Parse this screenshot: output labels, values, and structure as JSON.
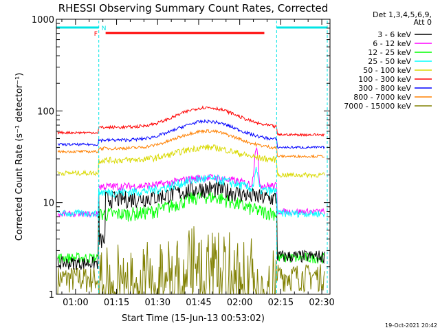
{
  "chart_data": {
    "type": "line",
    "title": "RHESSI Observing Summary Count Rates, Corrected",
    "xlabel": "Start Time (15-Jun-13 00:53:02)",
    "ylabel": "Corrected Count Rate (s⁻¹ detector⁻¹)",
    "yscale": "log",
    "ylim": [
      1,
      1000
    ],
    "xlim_minutes_after_0100": [
      -7,
      93
    ],
    "x_ticks": [
      "01:00",
      "01:15",
      "01:30",
      "01:45",
      "02:00",
      "02:15",
      "02:30"
    ],
    "y_ticks": [
      "1",
      "10",
      "100",
      "1000"
    ],
    "legend_header": [
      "Det 1,3,4,5,6,9,",
      "Att 0"
    ],
    "legend_placement": "right",
    "timestamp": "19-Oct-2021 20:42",
    "flags": [
      {
        "label": "N",
        "color": "#00e5e5"
      },
      {
        "label": "F",
        "color": "#ff0000"
      }
    ],
    "series": [
      {
        "name": "3 - 6 keV",
        "color": "#000000"
      },
      {
        "name": "6 - 12 keV",
        "color": "#ff00ff"
      },
      {
        "name": "12 - 25 keV",
        "color": "#00ff00"
      },
      {
        "name": "25 - 50 keV",
        "color": "#00ffff"
      },
      {
        "name": "50 - 100 keV",
        "color": "#d9d900"
      },
      {
        "name": "100 - 300 keV",
        "color": "#ff0000"
      },
      {
        "name": "300 - 800 keV",
        "color": "#0000ff"
      },
      {
        "name": "800 - 7000 keV",
        "color": "#ff8000"
      },
      {
        "name": "7000 - 15000 keV",
        "color": "#808000"
      }
    ]
  }
}
